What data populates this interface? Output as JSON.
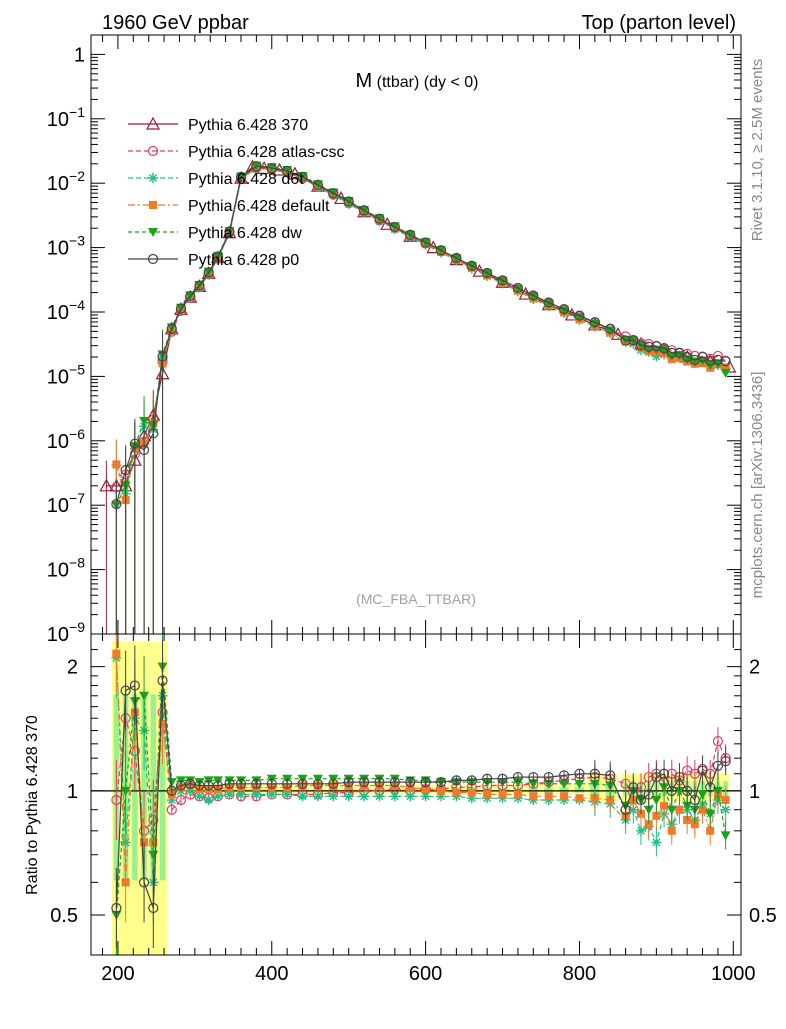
{
  "header": {
    "left": "1960 GeV ppbar",
    "right": "Top (parton level)"
  },
  "side": {
    "rivet": "Rivet 3.1.10, ≥ 2.5M events",
    "mcplots": "mcplots.cern.ch [arXiv:1306.3436]"
  },
  "chart_data": [
    {
      "type": "line",
      "panel": "main",
      "title_main": "M",
      "title_sub": " (ttbar) (dy < 0)",
      "watermark": "(MC_FBA_TTBAR)",
      "yscale": "log",
      "xlim": [
        165,
        1010
      ],
      "ylim": [
        1e-09,
        2
      ],
      "yticks": [
        {
          "v": 1,
          "base": "1",
          "exp": ""
        },
        {
          "v": 0.1,
          "base": "10",
          "exp": "−1"
        },
        {
          "v": 0.01,
          "base": "10",
          "exp": "−2"
        },
        {
          "v": 0.001,
          "base": "10",
          "exp": "−3"
        },
        {
          "v": 0.0001,
          "base": "10",
          "exp": "−4"
        },
        {
          "v": 1e-05,
          "base": "10",
          "exp": "−5"
        },
        {
          "v": 1e-06,
          "base": "10",
          "exp": "−6"
        },
        {
          "v": 1e-07,
          "base": "10",
          "exp": "−7"
        },
        {
          "v": 1e-08,
          "base": "10",
          "exp": "−8"
        },
        {
          "v": 1e-09,
          "base": "10",
          "exp": "−9"
        }
      ],
      "legend_placement": "top-left",
      "series": [
        {
          "name": "Pythia 6.428 370",
          "color": "#9b1b30",
          "marker": "triangle-open",
          "dash": "",
          "x": [
            185,
            198,
            210,
            222,
            234,
            246,
            258,
            270,
            282,
            294,
            306,
            318,
            330,
            345,
            360,
            375,
            390,
            410,
            430,
            460,
            490,
            520,
            550,
            580,
            610,
            640,
            670,
            700,
            730,
            760,
            790,
            820,
            850,
            880,
            910,
            940,
            970,
            995
          ],
          "y": [
            2e-07,
            2e-07,
            2e-07,
            5e-07,
            1.2e-06,
            2.5e-06,
            1.1e-05,
            5.5e-05,
            0.00011,
            0.00017,
            0.00025,
            0.0004,
            0.0007,
            0.0017,
            0.012,
            0.018,
            0.017,
            0.016,
            0.014,
            0.009,
            0.0058,
            0.0036,
            0.0023,
            0.0015,
            0.001,
            0.00065,
            0.00043,
            0.00029,
            0.00019,
            0.00013,
            9e-05,
            6.3e-05,
            4.5e-05,
            3.2e-05,
            2.5e-05,
            2e-05,
            1.7e-05,
            1.4e-05
          ]
        },
        {
          "name": "Pythia 6.428 atlas-csc",
          "color": "#e63a5f",
          "marker": "circle-open",
          "dash": "5,3",
          "x": [],
          "y": []
        },
        {
          "name": "Pythia 6.428 d6t",
          "color": "#20c080",
          "marker": "star",
          "dash": "5,3",
          "x": [],
          "y": []
        },
        {
          "name": "Pythia 6.428 default",
          "color": "#f07a2a",
          "marker": "square",
          "dash": "7,3,2,3",
          "x": [],
          "y": []
        },
        {
          "name": "Pythia 6.428 dw",
          "color": "#1ea01e",
          "marker": "triangle-down",
          "dash": "4,3",
          "x": [],
          "y": []
        },
        {
          "name": "Pythia 6.428 p0",
          "color": "#444444",
          "marker": "circle-open",
          "dash": "",
          "x": [],
          "y": []
        }
      ]
    },
    {
      "type": "line",
      "panel": "ratio",
      "ylabel": "Ratio to Pythia 6.428 370",
      "yscale": "log",
      "xlim": [
        165,
        1010
      ],
      "ylim": [
        0.4,
        2.4
      ],
      "yticks": [
        0.5,
        1,
        2
      ],
      "xticks": [
        200,
        400,
        600,
        800,
        1000
      ],
      "x": [
        198,
        210,
        222,
        234,
        246,
        258,
        270,
        282,
        294,
        306,
        318,
        330,
        345,
        360,
        380,
        400,
        420,
        440,
        460,
        480,
        500,
        520,
        540,
        560,
        580,
        600,
        620,
        640,
        660,
        680,
        700,
        720,
        740,
        760,
        780,
        800,
        820,
        840,
        860,
        870,
        880,
        890,
        900,
        910,
        920,
        930,
        940,
        950,
        960,
        970,
        980,
        990
      ],
      "series": [
        {
          "name": "Pythia 6.428 atlas-csc",
          "values": [
            0.95,
            1.5,
            1.25,
            0.8,
            0.85,
            1.55,
            0.9,
            0.95,
            0.98,
            0.97,
            0.96,
            0.97,
            0.98,
            0.97,
            0.97,
            0.98,
            0.98,
            0.98,
            0.98,
            0.99,
            0.99,
            1.0,
            1.0,
            1.01,
            1.0,
            1.01,
            1.01,
            1.02,
            1.02,
            1.03,
            1.03,
            1.03,
            1.04,
            1.05,
            1.06,
            1.07,
            1.08,
            1.07,
            1.04,
            0.99,
            1.02,
            1.08,
            1.1,
            1.05,
            1.1,
            1.06,
            1.12,
            1.1,
            1.13,
            1.1,
            1.32,
            1.2
          ]
        },
        {
          "name": "Pythia 6.428 d6t",
          "values": [
            2.1,
            0.75,
            1.5,
            1.4,
            0.6,
            1.7,
            0.95,
            1.0,
            1.0,
            0.97,
            0.95,
            0.97,
            0.98,
            0.98,
            0.98,
            0.98,
            0.98,
            0.97,
            0.97,
            0.97,
            0.97,
            0.97,
            0.97,
            0.97,
            0.97,
            0.97,
            0.97,
            0.97,
            0.96,
            0.96,
            0.96,
            0.96,
            0.95,
            0.95,
            0.95,
            0.95,
            0.94,
            0.93,
            0.85,
            0.9,
            0.8,
            0.82,
            0.75,
            0.88,
            0.83,
            0.9,
            0.9,
            0.85,
            0.93,
            0.88,
            0.95,
            0.9
          ]
        },
        {
          "name": "Pythia 6.428 default",
          "values": [
            2.15,
            0.6,
            1.55,
            0.75,
            0.75,
            1.45,
            0.98,
            1.02,
            1.03,
            1.01,
            1.01,
            1.01,
            1.02,
            1.02,
            1.02,
            1.02,
            1.02,
            1.03,
            1.03,
            1.03,
            1.03,
            1.03,
            1.03,
            1.03,
            1.02,
            1.01,
            1.0,
            0.99,
            0.99,
            0.98,
            0.98,
            0.98,
            0.97,
            0.97,
            0.97,
            0.96,
            0.96,
            0.95,
            0.87,
            0.95,
            0.88,
            0.83,
            0.87,
            0.92,
            0.8,
            0.9,
            0.85,
            0.83,
            0.9,
            0.8,
            0.98,
            0.95
          ]
        },
        {
          "name": "Pythia 6.428 dw",
          "values": [
            0.5,
            1.0,
            1.65,
            1.7,
            0.7,
            2.0,
            1.05,
            1.06,
            1.06,
            1.05,
            1.06,
            1.06,
            1.06,
            1.06,
            1.06,
            1.07,
            1.07,
            1.07,
            1.07,
            1.07,
            1.07,
            1.07,
            1.07,
            1.07,
            1.06,
            1.06,
            1.05,
            1.05,
            1.05,
            1.05,
            1.05,
            1.05,
            1.04,
            1.04,
            1.04,
            1.04,
            1.04,
            1.03,
            0.92,
            1.0,
            0.95,
            0.9,
            0.95,
            1.02,
            0.9,
            1.0,
            0.92,
            0.9,
            0.98,
            0.88,
            1.0,
            0.78
          ]
        },
        {
          "name": "Pythia 6.428 p0",
          "values": [
            0.52,
            1.75,
            1.8,
            0.6,
            0.52,
            1.85,
            1.0,
            1.03,
            1.04,
            1.03,
            1.03,
            1.03,
            1.04,
            1.04,
            1.04,
            1.04,
            1.04,
            1.04,
            1.04,
            1.04,
            1.05,
            1.05,
            1.05,
            1.05,
            1.05,
            1.05,
            1.05,
            1.06,
            1.06,
            1.07,
            1.07,
            1.08,
            1.08,
            1.08,
            1.09,
            1.1,
            1.1,
            1.09,
            0.9,
            1.02,
            0.95,
            0.98,
            1.08,
            1.1,
            1.0,
            1.08,
            1.0,
            0.95,
            1.12,
            1.02,
            1.15,
            1.18
          ]
        }
      ]
    }
  ]
}
